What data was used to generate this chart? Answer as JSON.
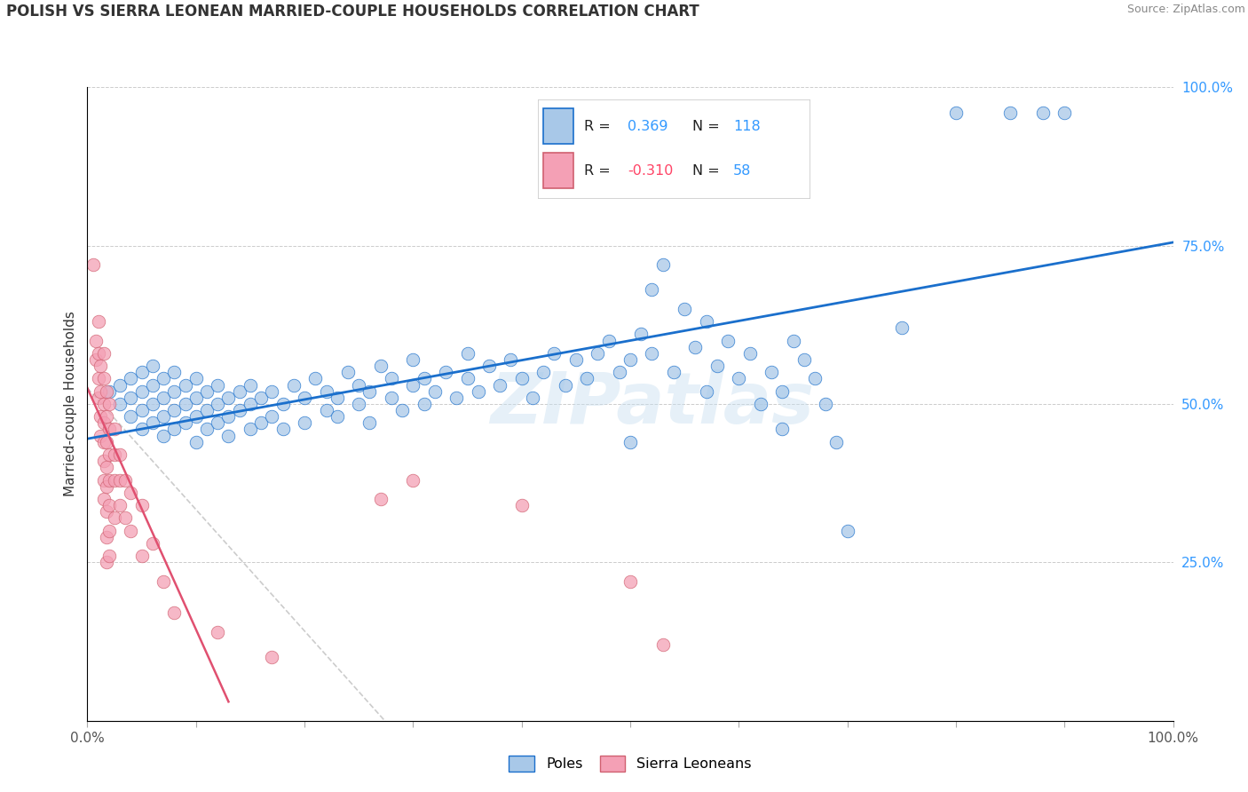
{
  "title": "POLISH VS SIERRA LEONEAN MARRIED-COUPLE HOUSEHOLDS CORRELATION CHART",
  "source": "Source: ZipAtlas.com",
  "ylabel": "Married-couple Households",
  "xmin": 0.0,
  "xmax": 1.0,
  "ymin": 0.0,
  "ymax": 1.0,
  "yticks": [
    0.0,
    0.25,
    0.5,
    0.75,
    1.0
  ],
  "ytick_labels": [
    "",
    "25.0%",
    "50.0%",
    "75.0%",
    "100.0%"
  ],
  "blue_R": 0.369,
  "blue_N": 118,
  "pink_R": -0.31,
  "pink_N": 58,
  "legend_label_blue": "Poles",
  "legend_label_pink": "Sierra Leoneans",
  "dot_color_blue": "#a8c8e8",
  "dot_color_pink": "#f4a0b5",
  "line_color_blue": "#1a6fcc",
  "line_color_pink": "#e05070",
  "dot_alpha": 0.75,
  "dot_size": 110,
  "watermark": "ZIPatlas",
  "blue_line_x0": 0.0,
  "blue_line_x1": 1.0,
  "blue_line_y0": 0.445,
  "blue_line_y1": 0.755,
  "pink_line_x0": 0.0,
  "pink_line_x1": 0.25,
  "pink_line_y0": 0.52,
  "pink_line_y1": 0.06,
  "pink_line_dash_x0": 0.0,
  "pink_line_dash_x1": 0.3,
  "pink_line_dash_y0": 0.52,
  "pink_line_dash_y1": 0.0,
  "blue_dots": [
    [
      0.02,
      0.52
    ],
    [
      0.03,
      0.5
    ],
    [
      0.03,
      0.53
    ],
    [
      0.04,
      0.48
    ],
    [
      0.04,
      0.51
    ],
    [
      0.04,
      0.54
    ],
    [
      0.05,
      0.46
    ],
    [
      0.05,
      0.49
    ],
    [
      0.05,
      0.52
    ],
    [
      0.05,
      0.55
    ],
    [
      0.06,
      0.47
    ],
    [
      0.06,
      0.5
    ],
    [
      0.06,
      0.53
    ],
    [
      0.06,
      0.56
    ],
    [
      0.07,
      0.45
    ],
    [
      0.07,
      0.48
    ],
    [
      0.07,
      0.51
    ],
    [
      0.07,
      0.54
    ],
    [
      0.08,
      0.46
    ],
    [
      0.08,
      0.49
    ],
    [
      0.08,
      0.52
    ],
    [
      0.08,
      0.55
    ],
    [
      0.09,
      0.47
    ],
    [
      0.09,
      0.5
    ],
    [
      0.09,
      0.53
    ],
    [
      0.1,
      0.44
    ],
    [
      0.1,
      0.48
    ],
    [
      0.1,
      0.51
    ],
    [
      0.1,
      0.54
    ],
    [
      0.11,
      0.46
    ],
    [
      0.11,
      0.49
    ],
    [
      0.11,
      0.52
    ],
    [
      0.12,
      0.47
    ],
    [
      0.12,
      0.5
    ],
    [
      0.12,
      0.53
    ],
    [
      0.13,
      0.45
    ],
    [
      0.13,
      0.48
    ],
    [
      0.13,
      0.51
    ],
    [
      0.14,
      0.49
    ],
    [
      0.14,
      0.52
    ],
    [
      0.15,
      0.46
    ],
    [
      0.15,
      0.5
    ],
    [
      0.15,
      0.53
    ],
    [
      0.16,
      0.47
    ],
    [
      0.16,
      0.51
    ],
    [
      0.17,
      0.48
    ],
    [
      0.17,
      0.52
    ],
    [
      0.18,
      0.46
    ],
    [
      0.18,
      0.5
    ],
    [
      0.19,
      0.53
    ],
    [
      0.2,
      0.47
    ],
    [
      0.2,
      0.51
    ],
    [
      0.21,
      0.54
    ],
    [
      0.22,
      0.49
    ],
    [
      0.22,
      0.52
    ],
    [
      0.23,
      0.48
    ],
    [
      0.23,
      0.51
    ],
    [
      0.24,
      0.55
    ],
    [
      0.25,
      0.5
    ],
    [
      0.25,
      0.53
    ],
    [
      0.26,
      0.47
    ],
    [
      0.26,
      0.52
    ],
    [
      0.27,
      0.56
    ],
    [
      0.28,
      0.51
    ],
    [
      0.28,
      0.54
    ],
    [
      0.29,
      0.49
    ],
    [
      0.3,
      0.53
    ],
    [
      0.3,
      0.57
    ],
    [
      0.31,
      0.5
    ],
    [
      0.31,
      0.54
    ],
    [
      0.32,
      0.52
    ],
    [
      0.33,
      0.55
    ],
    [
      0.34,
      0.51
    ],
    [
      0.35,
      0.54
    ],
    [
      0.35,
      0.58
    ],
    [
      0.36,
      0.52
    ],
    [
      0.37,
      0.56
    ],
    [
      0.38,
      0.53
    ],
    [
      0.39,
      0.57
    ],
    [
      0.4,
      0.54
    ],
    [
      0.41,
      0.51
    ],
    [
      0.42,
      0.55
    ],
    [
      0.43,
      0.58
    ],
    [
      0.44,
      0.53
    ],
    [
      0.45,
      0.57
    ],
    [
      0.46,
      0.54
    ],
    [
      0.47,
      0.58
    ],
    [
      0.48,
      0.6
    ],
    [
      0.49,
      0.55
    ],
    [
      0.5,
      0.57
    ],
    [
      0.5,
      0.44
    ],
    [
      0.51,
      0.61
    ],
    [
      0.52,
      0.58
    ],
    [
      0.52,
      0.68
    ],
    [
      0.53,
      0.72
    ],
    [
      0.54,
      0.55
    ],
    [
      0.55,
      0.65
    ],
    [
      0.56,
      0.59
    ],
    [
      0.57,
      0.63
    ],
    [
      0.57,
      0.52
    ],
    [
      0.58,
      0.56
    ],
    [
      0.59,
      0.6
    ],
    [
      0.6,
      0.54
    ],
    [
      0.61,
      0.58
    ],
    [
      0.62,
      0.5
    ],
    [
      0.63,
      0.55
    ],
    [
      0.64,
      0.52
    ],
    [
      0.64,
      0.46
    ],
    [
      0.65,
      0.6
    ],
    [
      0.66,
      0.57
    ],
    [
      0.67,
      0.54
    ],
    [
      0.68,
      0.5
    ],
    [
      0.69,
      0.44
    ],
    [
      0.7,
      0.3
    ],
    [
      0.75,
      0.62
    ],
    [
      0.8,
      0.96
    ],
    [
      0.85,
      0.96
    ],
    [
      0.88,
      0.96
    ],
    [
      0.9,
      0.96
    ]
  ],
  "pink_dots": [
    [
      0.005,
      0.72
    ],
    [
      0.008,
      0.6
    ],
    [
      0.008,
      0.57
    ],
    [
      0.01,
      0.63
    ],
    [
      0.01,
      0.58
    ],
    [
      0.01,
      0.54
    ],
    [
      0.01,
      0.51
    ],
    [
      0.012,
      0.56
    ],
    [
      0.012,
      0.52
    ],
    [
      0.012,
      0.48
    ],
    [
      0.012,
      0.45
    ],
    [
      0.015,
      0.58
    ],
    [
      0.015,
      0.54
    ],
    [
      0.015,
      0.5
    ],
    [
      0.015,
      0.47
    ],
    [
      0.015,
      0.44
    ],
    [
      0.015,
      0.41
    ],
    [
      0.015,
      0.38
    ],
    [
      0.015,
      0.35
    ],
    [
      0.018,
      0.52
    ],
    [
      0.018,
      0.48
    ],
    [
      0.018,
      0.44
    ],
    [
      0.018,
      0.4
    ],
    [
      0.018,
      0.37
    ],
    [
      0.018,
      0.33
    ],
    [
      0.018,
      0.29
    ],
    [
      0.018,
      0.25
    ],
    [
      0.02,
      0.5
    ],
    [
      0.02,
      0.46
    ],
    [
      0.02,
      0.42
    ],
    [
      0.02,
      0.38
    ],
    [
      0.02,
      0.34
    ],
    [
      0.02,
      0.3
    ],
    [
      0.02,
      0.26
    ],
    [
      0.025,
      0.46
    ],
    [
      0.025,
      0.42
    ],
    [
      0.025,
      0.38
    ],
    [
      0.025,
      0.32
    ],
    [
      0.03,
      0.42
    ],
    [
      0.03,
      0.38
    ],
    [
      0.03,
      0.34
    ],
    [
      0.035,
      0.38
    ],
    [
      0.035,
      0.32
    ],
    [
      0.04,
      0.36
    ],
    [
      0.04,
      0.3
    ],
    [
      0.05,
      0.34
    ],
    [
      0.05,
      0.26
    ],
    [
      0.06,
      0.28
    ],
    [
      0.07,
      0.22
    ],
    [
      0.08,
      0.17
    ],
    [
      0.12,
      0.14
    ],
    [
      0.17,
      0.1
    ],
    [
      0.27,
      0.35
    ],
    [
      0.3,
      0.38
    ],
    [
      0.4,
      0.34
    ],
    [
      0.5,
      0.22
    ],
    [
      0.53,
      0.12
    ]
  ]
}
